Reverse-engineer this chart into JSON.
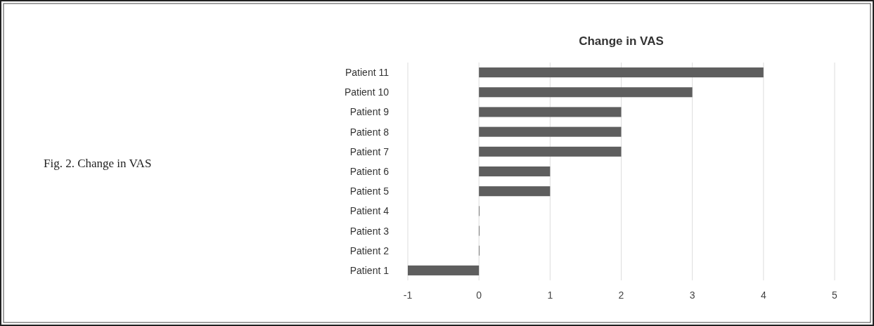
{
  "chart_data": {
    "type": "bar",
    "orientation": "horizontal",
    "title": "Change in VAS",
    "categories": [
      "Patient 11",
      "Patient 10",
      "Patient 9",
      "Patient 8",
      "Patient 7",
      "Patient 6",
      "Patient 5",
      "Patient 4",
      "Patient 3",
      "Patient 2",
      "Patient 1"
    ],
    "values": [
      4,
      3,
      2,
      2,
      2,
      1,
      1,
      0,
      0,
      0,
      -1
    ],
    "color": "#5e5e5e",
    "xlim": [
      -1,
      5
    ],
    "xticks": [
      -1,
      0,
      1,
      2,
      3,
      4,
      5
    ],
    "grid": "x",
    "annotations": [
      "Fig. 2. Change in VAS"
    ]
  }
}
